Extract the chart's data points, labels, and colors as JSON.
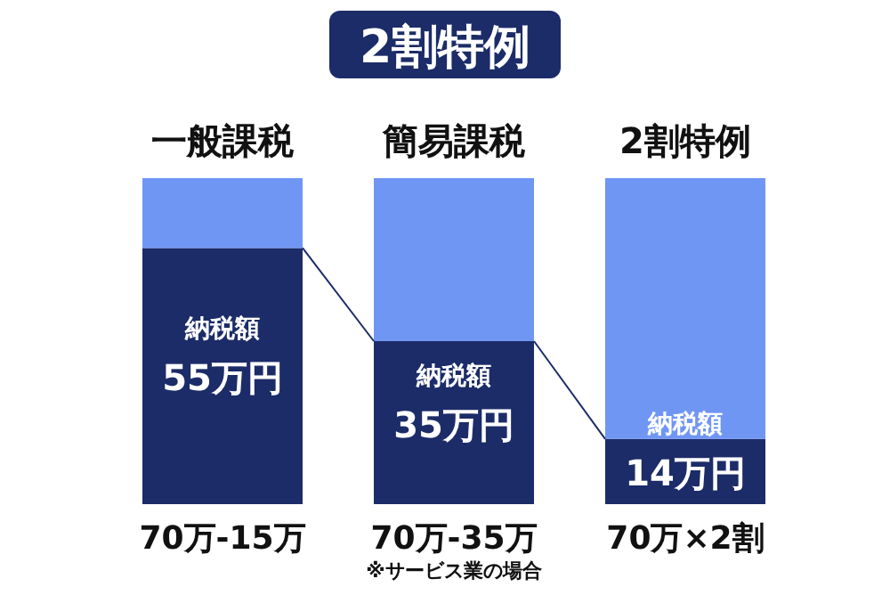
{
  "chart_data": {
    "type": "bar",
    "title": "2割特例",
    "stacked": true,
    "categories": [
      "一般課税",
      "簡易課税",
      "2割特例"
    ],
    "series": [
      {
        "color": "#1c2c68",
        "values": [
          55,
          35,
          14
        ],
        "value_labels": [
          "納税額\n55万円",
          "納税額\n35万円",
          "納税額\n14万円"
        ]
      },
      {
        "color": "#7096f4",
        "values": [
          15,
          35,
          56
        ]
      }
    ],
    "annotations": [
      "70万-15万",
      "70万-35万\n※サービス業の場合",
      "70万×2割"
    ]
  }
}
